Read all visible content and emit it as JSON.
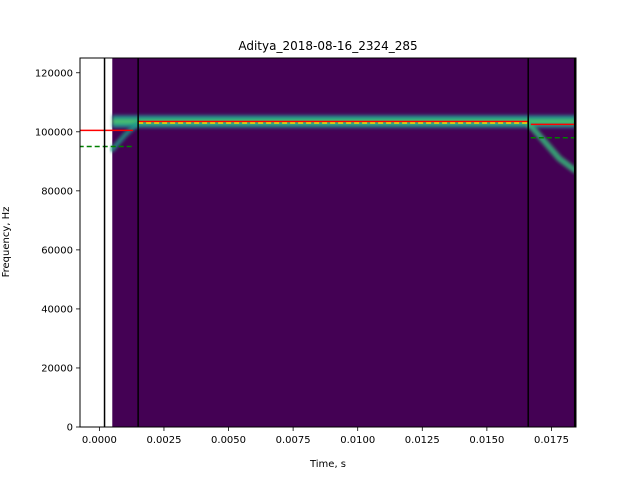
{
  "chart_data": {
    "type": "spectrogram",
    "title": "Aditya_2018-08-16_2324_285",
    "xlabel": "Time, s",
    "ylabel": "Frequency, Hz",
    "xlim": [
      -0.00075,
      0.01845
    ],
    "ylim": [
      0,
      125000
    ],
    "x_ticks": [
      0.0,
      0.0025,
      0.005,
      0.0075,
      0.01,
      0.0125,
      0.015,
      0.0175
    ],
    "x_tick_labels": [
      "0.0000",
      "0.0025",
      "0.0050",
      "0.0075",
      "0.0100",
      "0.0125",
      "0.0150",
      "0.0175"
    ],
    "y_ticks": [
      0,
      20000,
      40000,
      60000,
      80000,
      100000,
      120000
    ],
    "y_tick_labels": [
      "0",
      "20000",
      "40000",
      "60000",
      "80000",
      "100000",
      "120000"
    ],
    "spectrogram_start": 0.0005,
    "spectrogram_background": "#440154",
    "vertical_lines": [
      {
        "x": 0.0002,
        "color": "#000000"
      },
      {
        "x": 0.0015,
        "color": "#000000"
      },
      {
        "x": 0.0166,
        "color": "#000000"
      },
      {
        "x": 0.0184,
        "color": "#000000"
      }
    ],
    "horizontal_segments": [
      {
        "x0": -0.0008,
        "x1": 0.0013,
        "y": 100500,
        "color": "#ff0000",
        "style": "solid"
      },
      {
        "x0": -0.0008,
        "x1": 0.0013,
        "y": 95000,
        "color": "#008000",
        "style": "dashed"
      },
      {
        "x0": 0.0015,
        "x1": 0.0166,
        "y": 103500,
        "color": "#ff0000",
        "style": "solid"
      },
      {
        "x0": 0.0015,
        "x1": 0.0166,
        "y": 103000,
        "color": "#ffd700",
        "style": "dashed"
      },
      {
        "x0": 0.0167,
        "x1": 0.0184,
        "y": 102500,
        "color": "#ff0000",
        "style": "solid"
      },
      {
        "x0": 0.0167,
        "x1": 0.0184,
        "y": 98000,
        "color": "#008000",
        "style": "dashed"
      }
    ],
    "energy_band": {
      "x0": 0.0005,
      "x1": 0.01845,
      "y_center": 103500,
      "half_width": 2200
    },
    "downward_sweep": [
      {
        "t": 0.0166,
        "f": 103000
      },
      {
        "t": 0.0172,
        "f": 97000
      },
      {
        "t": 0.0178,
        "f": 91000
      },
      {
        "t": 0.0184,
        "f": 87000
      }
    ],
    "initial_sweep": [
      {
        "t": 0.0005,
        "f": 94000
      },
      {
        "t": 0.001,
        "f": 99000
      },
      {
        "t": 0.0015,
        "f": 103000
      }
    ]
  }
}
